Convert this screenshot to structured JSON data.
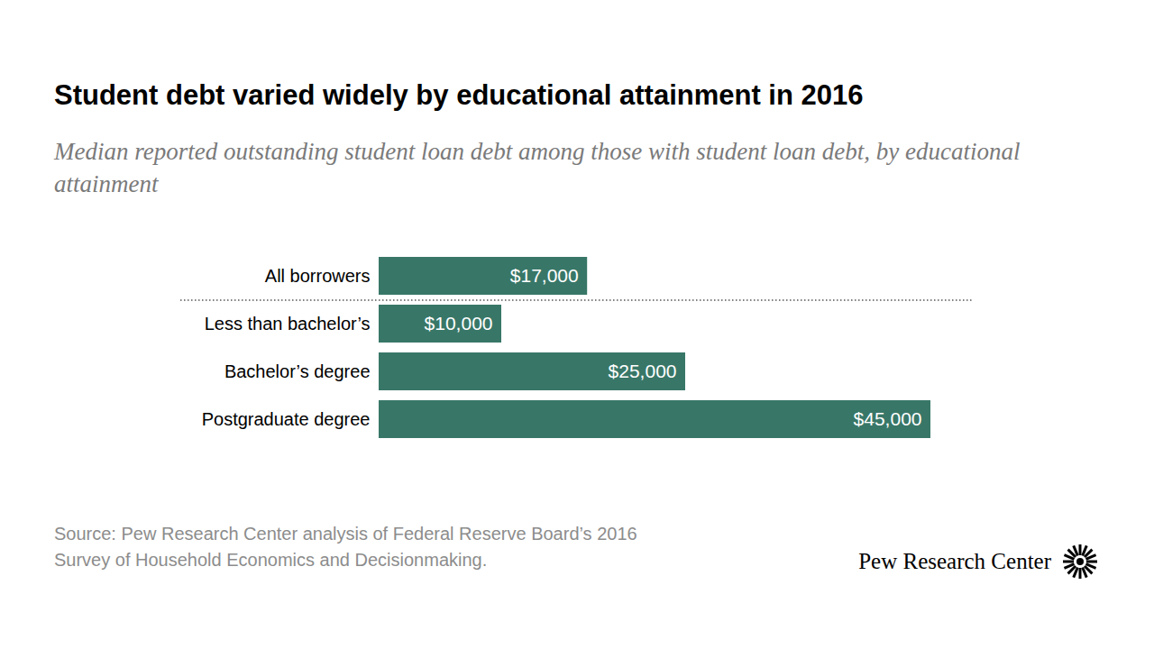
{
  "chart_data": {
    "type": "bar",
    "orientation": "horizontal",
    "title": "Student debt varied widely by educational attainment in 2016",
    "subtitle": "Median reported outstanding student loan debt among those with student loan debt, by educational attainment",
    "categories": [
      "All borrowers",
      "Less than bachelor’s",
      "Bachelor’s degree",
      "Postgraduate degree"
    ],
    "values": [
      17000,
      10000,
      25000,
      45000
    ],
    "value_labels": [
      "$17,000",
      "$10,000",
      "$25,000",
      "$45,000"
    ],
    "color": "#387768",
    "xlim": [
      0,
      45000
    ],
    "data_labels": true,
    "tick_labels": "y",
    "source": "Source: Pew Research Center analysis of Federal Reserve Board’s 2016 Survey of Household Economics and Decisionmaking.",
    "credit": "Pew Research Center"
  }
}
